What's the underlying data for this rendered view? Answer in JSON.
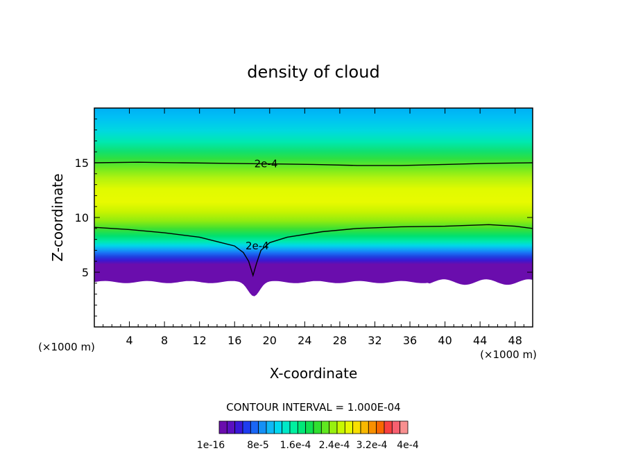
{
  "chart_data": {
    "type": "heatmap",
    "title": "density of cloud",
    "xlabel": "X-coordinate",
    "ylabel": "Z-coordinate",
    "x_unit": "(×1000 m)",
    "y_unit": "(×1000 m)",
    "xlim": [
      0,
      50
    ],
    "ylim": [
      0,
      20
    ],
    "x_ticks": [
      4,
      8,
      12,
      16,
      20,
      24,
      28,
      32,
      36,
      40,
      44,
      48
    ],
    "y_ticks": [
      5,
      10,
      15
    ],
    "contour_interval_text": "CONTOUR INTERVAL = 1.000E-04",
    "colorbar_labels": [
      "1e-16",
      "8e-5",
      "1.6e-4",
      "2.4e-4",
      "3.2e-4",
      "4e-4"
    ],
    "colorbar_colors": [
      "#6a0dad",
      "#5a10c0",
      "#3a18d8",
      "#1e3cf0",
      "#1a66f5",
      "#1590f5",
      "#10b8f5",
      "#00d8f0",
      "#00e8c8",
      "#00f0a0",
      "#00e878",
      "#10e050",
      "#30e030",
      "#60e820",
      "#98f010",
      "#c8f800",
      "#e8f800",
      "#f8e000",
      "#f8b800",
      "#f89000",
      "#f86800",
      "#f84040",
      "#f86070",
      "#f89090"
    ],
    "contour_lines": [
      {
        "level": "2e-4",
        "label": "2e-4",
        "points": [
          [
            0,
            15.0
          ],
          [
            5,
            15.05
          ],
          [
            10,
            15.0
          ],
          [
            15,
            14.95
          ],
          [
            20,
            14.9
          ],
          [
            25,
            14.85
          ],
          [
            30,
            14.75
          ],
          [
            35,
            14.75
          ],
          [
            40,
            14.85
          ],
          [
            45,
            14.95
          ],
          [
            50,
            15.0
          ]
        ],
        "label_at": [
          18,
          14.9
        ]
      },
      {
        "level": "2e-4",
        "label": "2e-4",
        "points": [
          [
            0,
            9.1
          ],
          [
            4,
            8.9
          ],
          [
            8,
            8.6
          ],
          [
            12,
            8.2
          ],
          [
            14,
            7.8
          ],
          [
            16,
            7.4
          ],
          [
            17,
            6.8
          ],
          [
            17.6,
            6.0
          ],
          [
            18.1,
            4.7
          ],
          [
            18.5,
            5.8
          ],
          [
            19,
            7.0
          ],
          [
            20,
            7.7
          ],
          [
            22,
            8.2
          ],
          [
            26,
            8.7
          ],
          [
            30,
            9.0
          ],
          [
            35,
            9.15
          ],
          [
            40,
            9.2
          ],
          [
            45,
            9.35
          ],
          [
            48,
            9.2
          ],
          [
            50,
            9.0
          ]
        ],
        "label_at": [
          17.0,
          7.4
        ]
      }
    ]
  }
}
